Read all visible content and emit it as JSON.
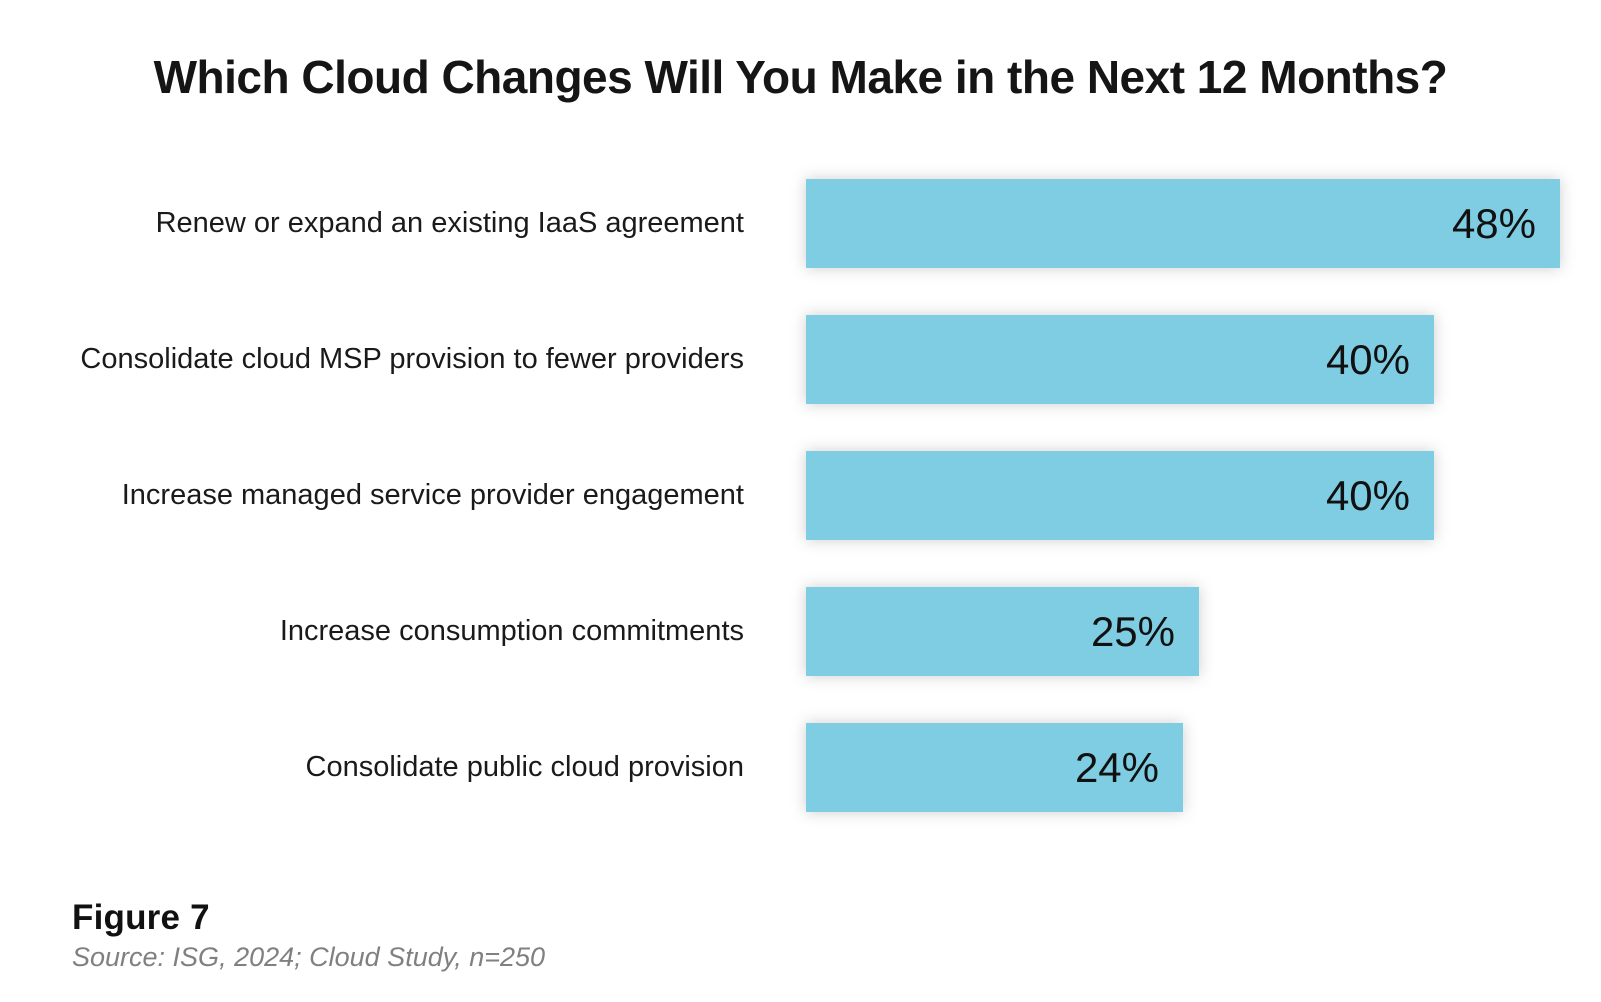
{
  "title": "Which Cloud Changes Will You Make in the Next 12 Months?",
  "footer": {
    "figure_label": "Figure 7",
    "source_note": "Source: ISG, 2024; Cloud Study, n=250"
  },
  "colors": {
    "bar": "#7ECDE2",
    "title_text": "#151515",
    "category_text": "#1a1a1a",
    "value_text": "#111111",
    "source_text": "#808080",
    "background": "#ffffff"
  },
  "chart_data": {
    "type": "bar",
    "orientation": "horizontal",
    "title": "Which Cloud Changes Will You Make in the Next 12 Months?",
    "categories": [
      "Renew or expand an existing IaaS agreement",
      "Consolidate cloud MSP provision to fewer providers",
      "Increase managed service provider engagement",
      "Increase consumption commitments",
      "Consolidate public cloud provision"
    ],
    "values": [
      48,
      40,
      40,
      25,
      24
    ],
    "value_labels": [
      "48%",
      "40%",
      "40%",
      "25%",
      "24%"
    ],
    "value_suffix": "%",
    "xlim": [
      0,
      50
    ],
    "grid": false,
    "legend": false,
    "data_labels_position": "inside-end",
    "bar_color": "#7ECDE2",
    "sorted": "descending"
  }
}
